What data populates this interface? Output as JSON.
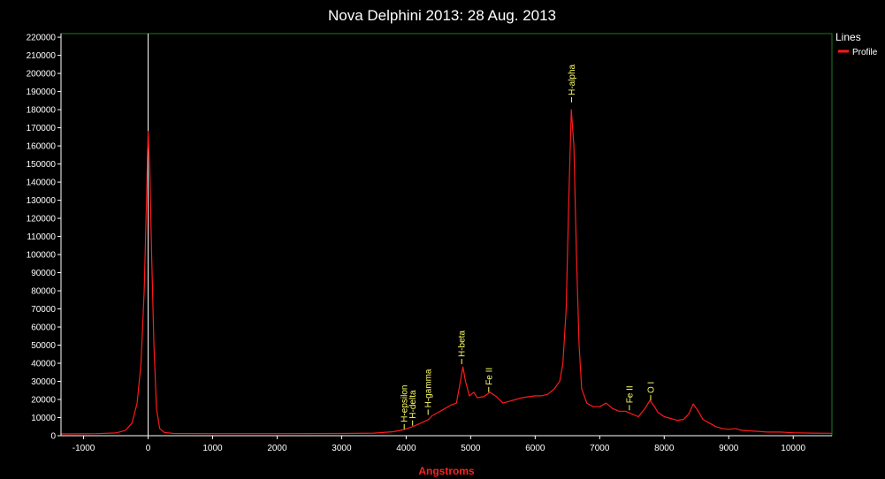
{
  "chart_data": {
    "type": "line",
    "title": "Nova Delphini 2013: 28 Aug. 2013",
    "xlabel": "Angstroms",
    "ylabel": "",
    "xlim": [
      -1350,
      10600
    ],
    "ylim": [
      0,
      222000
    ],
    "xticks": [
      -1000,
      0,
      1000,
      2000,
      3000,
      4000,
      5000,
      6000,
      7000,
      8000,
      9000,
      10000
    ],
    "yticks": [
      0,
      10000,
      20000,
      30000,
      40000,
      50000,
      60000,
      70000,
      80000,
      90000,
      100000,
      110000,
      120000,
      130000,
      140000,
      150000,
      160000,
      170000,
      180000,
      190000,
      200000,
      210000,
      220000
    ],
    "grid": false,
    "legend": {
      "title": "Lines",
      "position": "right",
      "entries": [
        "Profile"
      ]
    },
    "colors": {
      "background": "#000000",
      "frame": "#1e7a1e",
      "axis": "#ffffff",
      "series": "#ff1a1a",
      "annotation": "#ffff66",
      "marker": "#ffffff",
      "xlabel": "#ff2020"
    },
    "reference_line_x": 0,
    "series": [
      {
        "name": "Profile",
        "points": [
          [
            -1350,
            1000
          ],
          [
            -800,
            1100
          ],
          [
            -500,
            1500
          ],
          [
            -350,
            3000
          ],
          [
            -250,
            7000
          ],
          [
            -170,
            18000
          ],
          [
            -110,
            40000
          ],
          [
            -60,
            80000
          ],
          [
            -25,
            130000
          ],
          [
            0,
            168000
          ],
          [
            25,
            150000
          ],
          [
            55,
            100000
          ],
          [
            90,
            50000
          ],
          [
            130,
            15000
          ],
          [
            180,
            4000
          ],
          [
            250,
            1800
          ],
          [
            400,
            1200
          ],
          [
            1000,
            1100
          ],
          [
            2000,
            1100
          ],
          [
            3000,
            1200
          ],
          [
            3500,
            1400
          ],
          [
            3800,
            2200
          ],
          [
            3950,
            3200
          ],
          [
            4100,
            5000
          ],
          [
            4200,
            6500
          ],
          [
            4350,
            9000
          ],
          [
            4400,
            11000
          ],
          [
            4500,
            13000
          ],
          [
            4600,
            15000
          ],
          [
            4700,
            17000
          ],
          [
            4780,
            18000
          ],
          [
            4830,
            28000
          ],
          [
            4880,
            38000
          ],
          [
            4920,
            30000
          ],
          [
            4980,
            22000
          ],
          [
            5050,
            24000
          ],
          [
            5100,
            21000
          ],
          [
            5200,
            21500
          ],
          [
            5300,
            24000
          ],
          [
            5400,
            21500
          ],
          [
            5500,
            18000
          ],
          [
            5600,
            19000
          ],
          [
            5700,
            20000
          ],
          [
            5800,
            21000
          ],
          [
            5900,
            21500
          ],
          [
            6000,
            22000
          ],
          [
            6100,
            22000
          ],
          [
            6200,
            23000
          ],
          [
            6300,
            26000
          ],
          [
            6380,
            30000
          ],
          [
            6430,
            40000
          ],
          [
            6480,
            70000
          ],
          [
            6520,
            130000
          ],
          [
            6560,
            180000
          ],
          [
            6600,
            160000
          ],
          [
            6640,
            100000
          ],
          [
            6680,
            50000
          ],
          [
            6720,
            26000
          ],
          [
            6800,
            18000
          ],
          [
            6900,
            16000
          ],
          [
            7000,
            16000
          ],
          [
            7100,
            18000
          ],
          [
            7200,
            15000
          ],
          [
            7300,
            13500
          ],
          [
            7400,
            13500
          ],
          [
            7500,
            12000
          ],
          [
            7600,
            10500
          ],
          [
            7700,
            15000
          ],
          [
            7780,
            19500
          ],
          [
            7850,
            16000
          ],
          [
            7900,
            13000
          ],
          [
            8000,
            10500
          ],
          [
            8100,
            9500
          ],
          [
            8200,
            8500
          ],
          [
            8300,
            9000
          ],
          [
            8380,
            12000
          ],
          [
            8450,
            17500
          ],
          [
            8520,
            14000
          ],
          [
            8600,
            9000
          ],
          [
            8700,
            7000
          ],
          [
            8800,
            5000
          ],
          [
            8900,
            4000
          ],
          [
            9000,
            3500
          ],
          [
            9100,
            4000
          ],
          [
            9200,
            3000
          ],
          [
            9400,
            2500
          ],
          [
            9600,
            2000
          ],
          [
            9800,
            2000
          ],
          [
            10000,
            1600
          ],
          [
            10300,
            1400
          ],
          [
            10600,
            1300
          ]
        ]
      }
    ],
    "annotations": [
      {
        "label": "H-epsilon",
        "x": 3970,
        "y": 3500
      },
      {
        "label": "H-delta",
        "x": 4100,
        "y": 5500
      },
      {
        "label": "H-gamma",
        "x": 4340,
        "y": 11500
      },
      {
        "label": "H-beta",
        "x": 4861,
        "y": 39500
      },
      {
        "label": "Fe II",
        "x": 5280,
        "y": 24000
      },
      {
        "label": "H-alpha",
        "x": 6563,
        "y": 184000
      },
      {
        "label": "Fe II",
        "x": 7460,
        "y": 14000
      },
      {
        "label": "O I",
        "x": 7790,
        "y": 19500
      }
    ]
  }
}
